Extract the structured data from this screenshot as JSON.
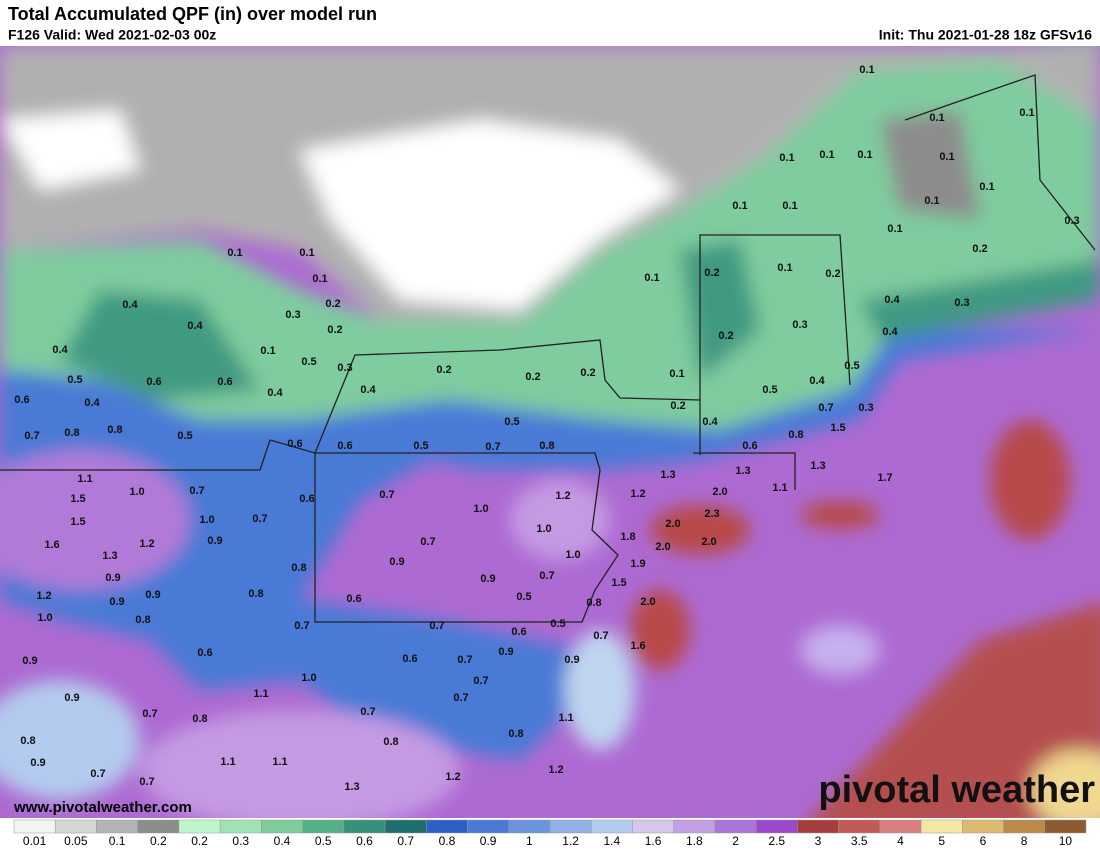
{
  "header": {
    "title": "Total Accumulated QPF (in) over model run",
    "valid": "F126 Valid: Wed 2021-02-03 00z",
    "init": "Init: Thu 2021-01-28 18z GFSv16"
  },
  "map": {
    "labels": [
      "0.1",
      "0.1",
      "0.1",
      "0.1",
      "0.1",
      "0.1",
      "0.1",
      "0.1",
      "0.1",
      "0.1",
      "0.1",
      "0.1",
      "0.3",
      "0.2",
      "0.1",
      "0.1",
      "0.1",
      "0.2",
      "0.4",
      "0.3",
      "0.2",
      "0.4",
      "0.1",
      "0.5",
      "0.4",
      "0.1",
      "0.2",
      "0.1",
      "0.2",
      "0.4",
      "0.3",
      "0.2",
      "0.3",
      "0.4",
      "0.3",
      "0.2",
      "0.2",
      "0.2",
      "0.1",
      "0.5",
      "0.4",
      "0.5",
      "0.5",
      "0.6",
      "0.6",
      "0.4",
      "0.4",
      "0.6",
      "0.4",
      "0.2",
      "0.7",
      "0.3",
      "0.4",
      "0.5",
      "0.8",
      "0.7",
      "0.8",
      "0.5",
      "0.6",
      "0.6",
      "0.5",
      "0.7",
      "0.8",
      "0.6",
      "0.8",
      "1.5",
      "1.3",
      "1.3",
      "1.3",
      "1.1",
      "1.0",
      "0.7",
      "1.5",
      "1.2",
      "1.2",
      "2.0",
      "1.1",
      "1.7",
      "0.6",
      "0.7",
      "1.0",
      "1.0",
      "0.7",
      "1.5",
      "2.0",
      "2.3",
      "1.0",
      "1.8",
      "2.0",
      "1.6",
      "1.2",
      "0.9",
      "0.7",
      "2.0",
      "1.3",
      "1.0",
      "0.9",
      "1.9",
      "0.8",
      "0.9",
      "0.9",
      "0.7",
      "1.5",
      "1.2",
      "0.9",
      "0.9",
      "0.8",
      "0.6",
      "0.5",
      "0.8",
      "2.0",
      "1.0",
      "0.8",
      "0.7",
      "0.7",
      "0.5",
      "0.6",
      "0.7",
      "0.6",
      "0.6",
      "0.7",
      "0.9",
      "0.9",
      "1.6",
      "0.9",
      "1.0",
      "0.7",
      "0.7",
      "1.1",
      "0.9",
      "0.8",
      "0.7",
      "0.7",
      "1.1",
      "0.8",
      "0.8",
      "0.8",
      "0.9",
      "1.1",
      "1.1",
      "0.7",
      "0.7",
      "1.2",
      "1.3",
      "1.2"
    ]
  },
  "legend": {
    "items": [
      {
        "label": "0.01",
        "color": "#f4f4f4"
      },
      {
        "label": "0.05",
        "color": "#d6d6d6"
      },
      {
        "label": "0.1",
        "color": "#b4b4b4"
      },
      {
        "label": "0.2",
        "color": "#8c8c8c"
      },
      {
        "label": "0.2",
        "color": "#bff5cc"
      },
      {
        "label": "0.3",
        "color": "#9fe3b4"
      },
      {
        "label": "0.4",
        "color": "#7ccc9c"
      },
      {
        "label": "0.5",
        "color": "#55b08a"
      },
      {
        "label": "0.6",
        "color": "#35917c"
      },
      {
        "label": "0.7",
        "color": "#1f6f70"
      },
      {
        "label": "0.8",
        "color": "#2e5fc6"
      },
      {
        "label": "0.9",
        "color": "#4b79d4"
      },
      {
        "label": "1",
        "color": "#6c94de"
      },
      {
        "label": "1.2",
        "color": "#90b0e6"
      },
      {
        "label": "1.4",
        "color": "#b3cbee"
      },
      {
        "label": "1.6",
        "color": "#d6c6ee"
      },
      {
        "label": "1.8",
        "color": "#c3a0e3"
      },
      {
        "label": "2",
        "color": "#ab74d8"
      },
      {
        "label": "2.5",
        "color": "#9a48cc"
      },
      {
        "label": "3",
        "color": "#a63c3c"
      },
      {
        "label": "3.5",
        "color": "#c25a5a"
      },
      {
        "label": "4",
        "color": "#d88080"
      },
      {
        "label": "5",
        "color": "#f4e6a4"
      },
      {
        "label": "6",
        "color": "#dcbc6c"
      },
      {
        "label": "8",
        "color": "#bb8a48"
      },
      {
        "label": "10",
        "color": "#8e5a30"
      }
    ]
  },
  "footer": {
    "url": "www.pivotalweather.com",
    "logo": "pivotal weather"
  }
}
